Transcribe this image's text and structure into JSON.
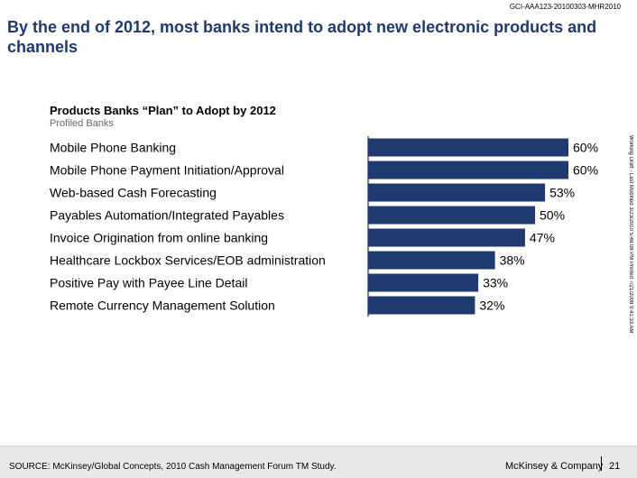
{
  "doc_id": "GCI-AAA123-20100303-MHR2010",
  "headline": "By the end of 2012, most banks intend to adopt new electronic products and channels",
  "side_stamp": "Working Draft - Last Modified 3/23/2010 5:48:08 PM      Printed 7/21/2008 9:41:33 AM",
  "chart_data": {
    "type": "bar",
    "orientation": "horizontal",
    "title": "Products Banks “Plan” to Adopt by 2012",
    "subtitle": "Profiled Banks",
    "categories": [
      "Mobile Phone Banking",
      "Mobile Phone Payment Initiation/Approval",
      "Web-based Cash Forecasting",
      "Payables Automation/Integrated Payables",
      "Invoice Origination from online banking",
      "Healthcare Lockbox Services/EOB administration",
      "Positive Pay with Payee Line Detail",
      "Remote Currency Management Solution"
    ],
    "values": [
      60,
      60,
      53,
      50,
      47,
      38,
      33,
      32
    ],
    "value_labels": [
      "60%",
      "60%",
      "53%",
      "50%",
      "47%",
      "38%",
      "33%",
      "32%"
    ],
    "xlim": [
      0,
      60
    ],
    "bar_color": "#1f3a6e",
    "grid": false
  },
  "footer": {
    "source": "SOURCE: McKinsey/Global Concepts, 2010 Cash Management Forum TM Study.",
    "brand": "McKinsey & Company",
    "page": "21"
  }
}
